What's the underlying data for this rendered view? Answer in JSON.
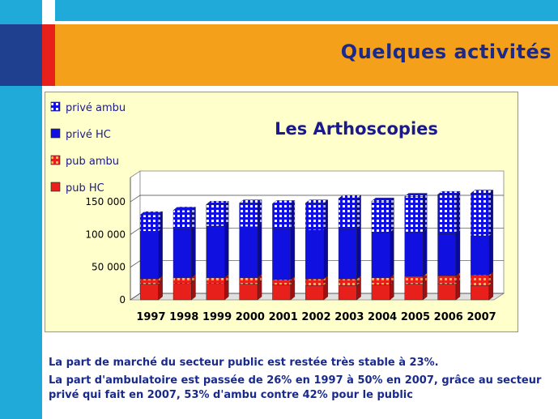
{
  "slide": {
    "title": "Quelques activités",
    "caption_line1": "La part de marché du secteur public est restée très stable à 23%.",
    "caption_line2": "La part d'ambulatoire est passée de 26% en 1997 à 50% en 2007, grâce au secteur",
    "caption_line3": "privé qui fait en 2007, 53% d'ambu contre 42% pour le public"
  },
  "chart_data": {
    "type": "bar",
    "stacked": true,
    "title": "Les Arthoscopies",
    "categories": [
      "1997",
      "1998",
      "1999",
      "2000",
      "2001",
      "2002",
      "2003",
      "2004",
      "2005",
      "2006",
      "2007"
    ],
    "ylim": [
      0,
      150000
    ],
    "yticks": [
      {
        "value": 0,
        "label": "0"
      },
      {
        "value": 50000,
        "label": "50 000"
      },
      {
        "value": 100000,
        "label": "100 000"
      },
      {
        "value": 150000,
        "label": "150 000"
      }
    ],
    "legend_position": "top-left",
    "series": [
      {
        "name": "pub HC",
        "color": "#e8201c",
        "pattern": "solid",
        "values": [
          24000,
          25000,
          25000,
          24000,
          23000,
          22000,
          22000,
          23000,
          24000,
          24000,
          22000
        ]
      },
      {
        "name": "pub ambu",
        "color": "#e8201c",
        "pattern": "hatch",
        "values": [
          8000,
          9000,
          9000,
          10000,
          8000,
          10000,
          10000,
          11000,
          12000,
          13000,
          16000
        ]
      },
      {
        "name": "privé HC",
        "color": "#1010e0",
        "pattern": "solid",
        "values": [
          73000,
          74000,
          79000,
          78000,
          77000,
          75000,
          77000,
          69000,
          68000,
          64000,
          60000
        ]
      },
      {
        "name": "privé ambu",
        "color": "#1010e0",
        "pattern": "hatch",
        "values": [
          25000,
          29000,
          33000,
          36000,
          39000,
          41000,
          46000,
          48000,
          54000,
          60000,
          65000
        ]
      }
    ],
    "legend_order": [
      "privé ambu",
      "privé HC",
      "pub ambu",
      "pub HC"
    ]
  }
}
